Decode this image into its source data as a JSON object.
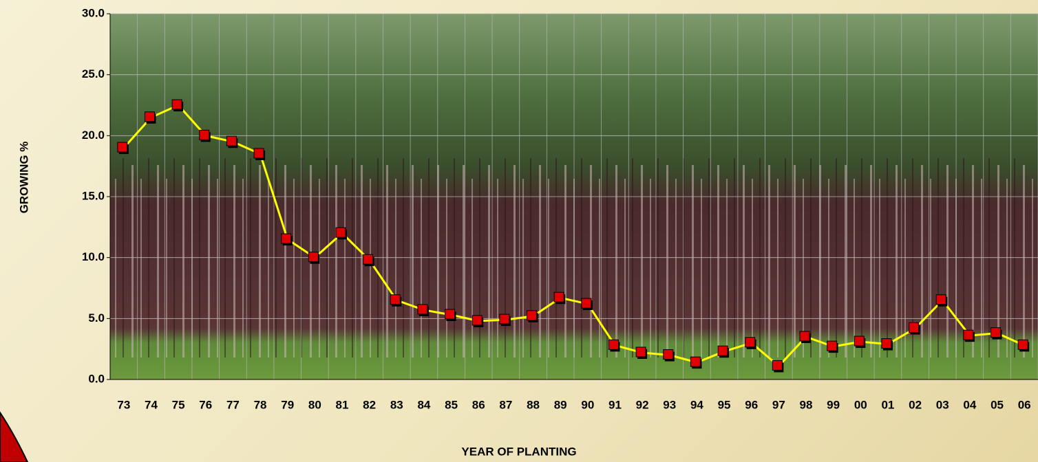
{
  "chart_data": {
    "type": "line",
    "xlabel": "YEAR OF PLANTING",
    "ylabel": "GROWING %",
    "categories": [
      "73",
      "74",
      "75",
      "76",
      "77",
      "78",
      "79",
      "80",
      "81",
      "82",
      "83",
      "84",
      "85",
      "86",
      "87",
      "88",
      "89",
      "90",
      "91",
      "92",
      "93",
      "94",
      "95",
      "96",
      "97",
      "98",
      "99",
      "00",
      "01",
      "02",
      "03",
      "04",
      "05",
      "06"
    ],
    "values": [
      19.0,
      21.5,
      22.5,
      20.0,
      19.5,
      18.5,
      11.5,
      10.0,
      12.0,
      9.8,
      6.5,
      5.7,
      5.3,
      4.8,
      4.9,
      5.2,
      6.7,
      6.2,
      2.8,
      2.2,
      2.0,
      1.4,
      2.3,
      3.0,
      1.1,
      3.5,
      2.7,
      3.1,
      2.9,
      4.2,
      6.5,
      3.6,
      3.8,
      2.8
    ],
    "color": "#ffff00",
    "marker_color": "#e00000",
    "ylim": [
      0,
      30
    ],
    "yticks": [
      {
        "value": 0,
        "label": "0.0"
      },
      {
        "value": 5,
        "label": "5.0"
      },
      {
        "value": 10,
        "label": "10.0"
      },
      {
        "value": 15,
        "label": "15.0"
      },
      {
        "value": 20,
        "label": "20.0"
      },
      {
        "value": 25,
        "label": "25.0"
      },
      {
        "value": 30,
        "label": "30.0"
      }
    ],
    "grid": true
  }
}
